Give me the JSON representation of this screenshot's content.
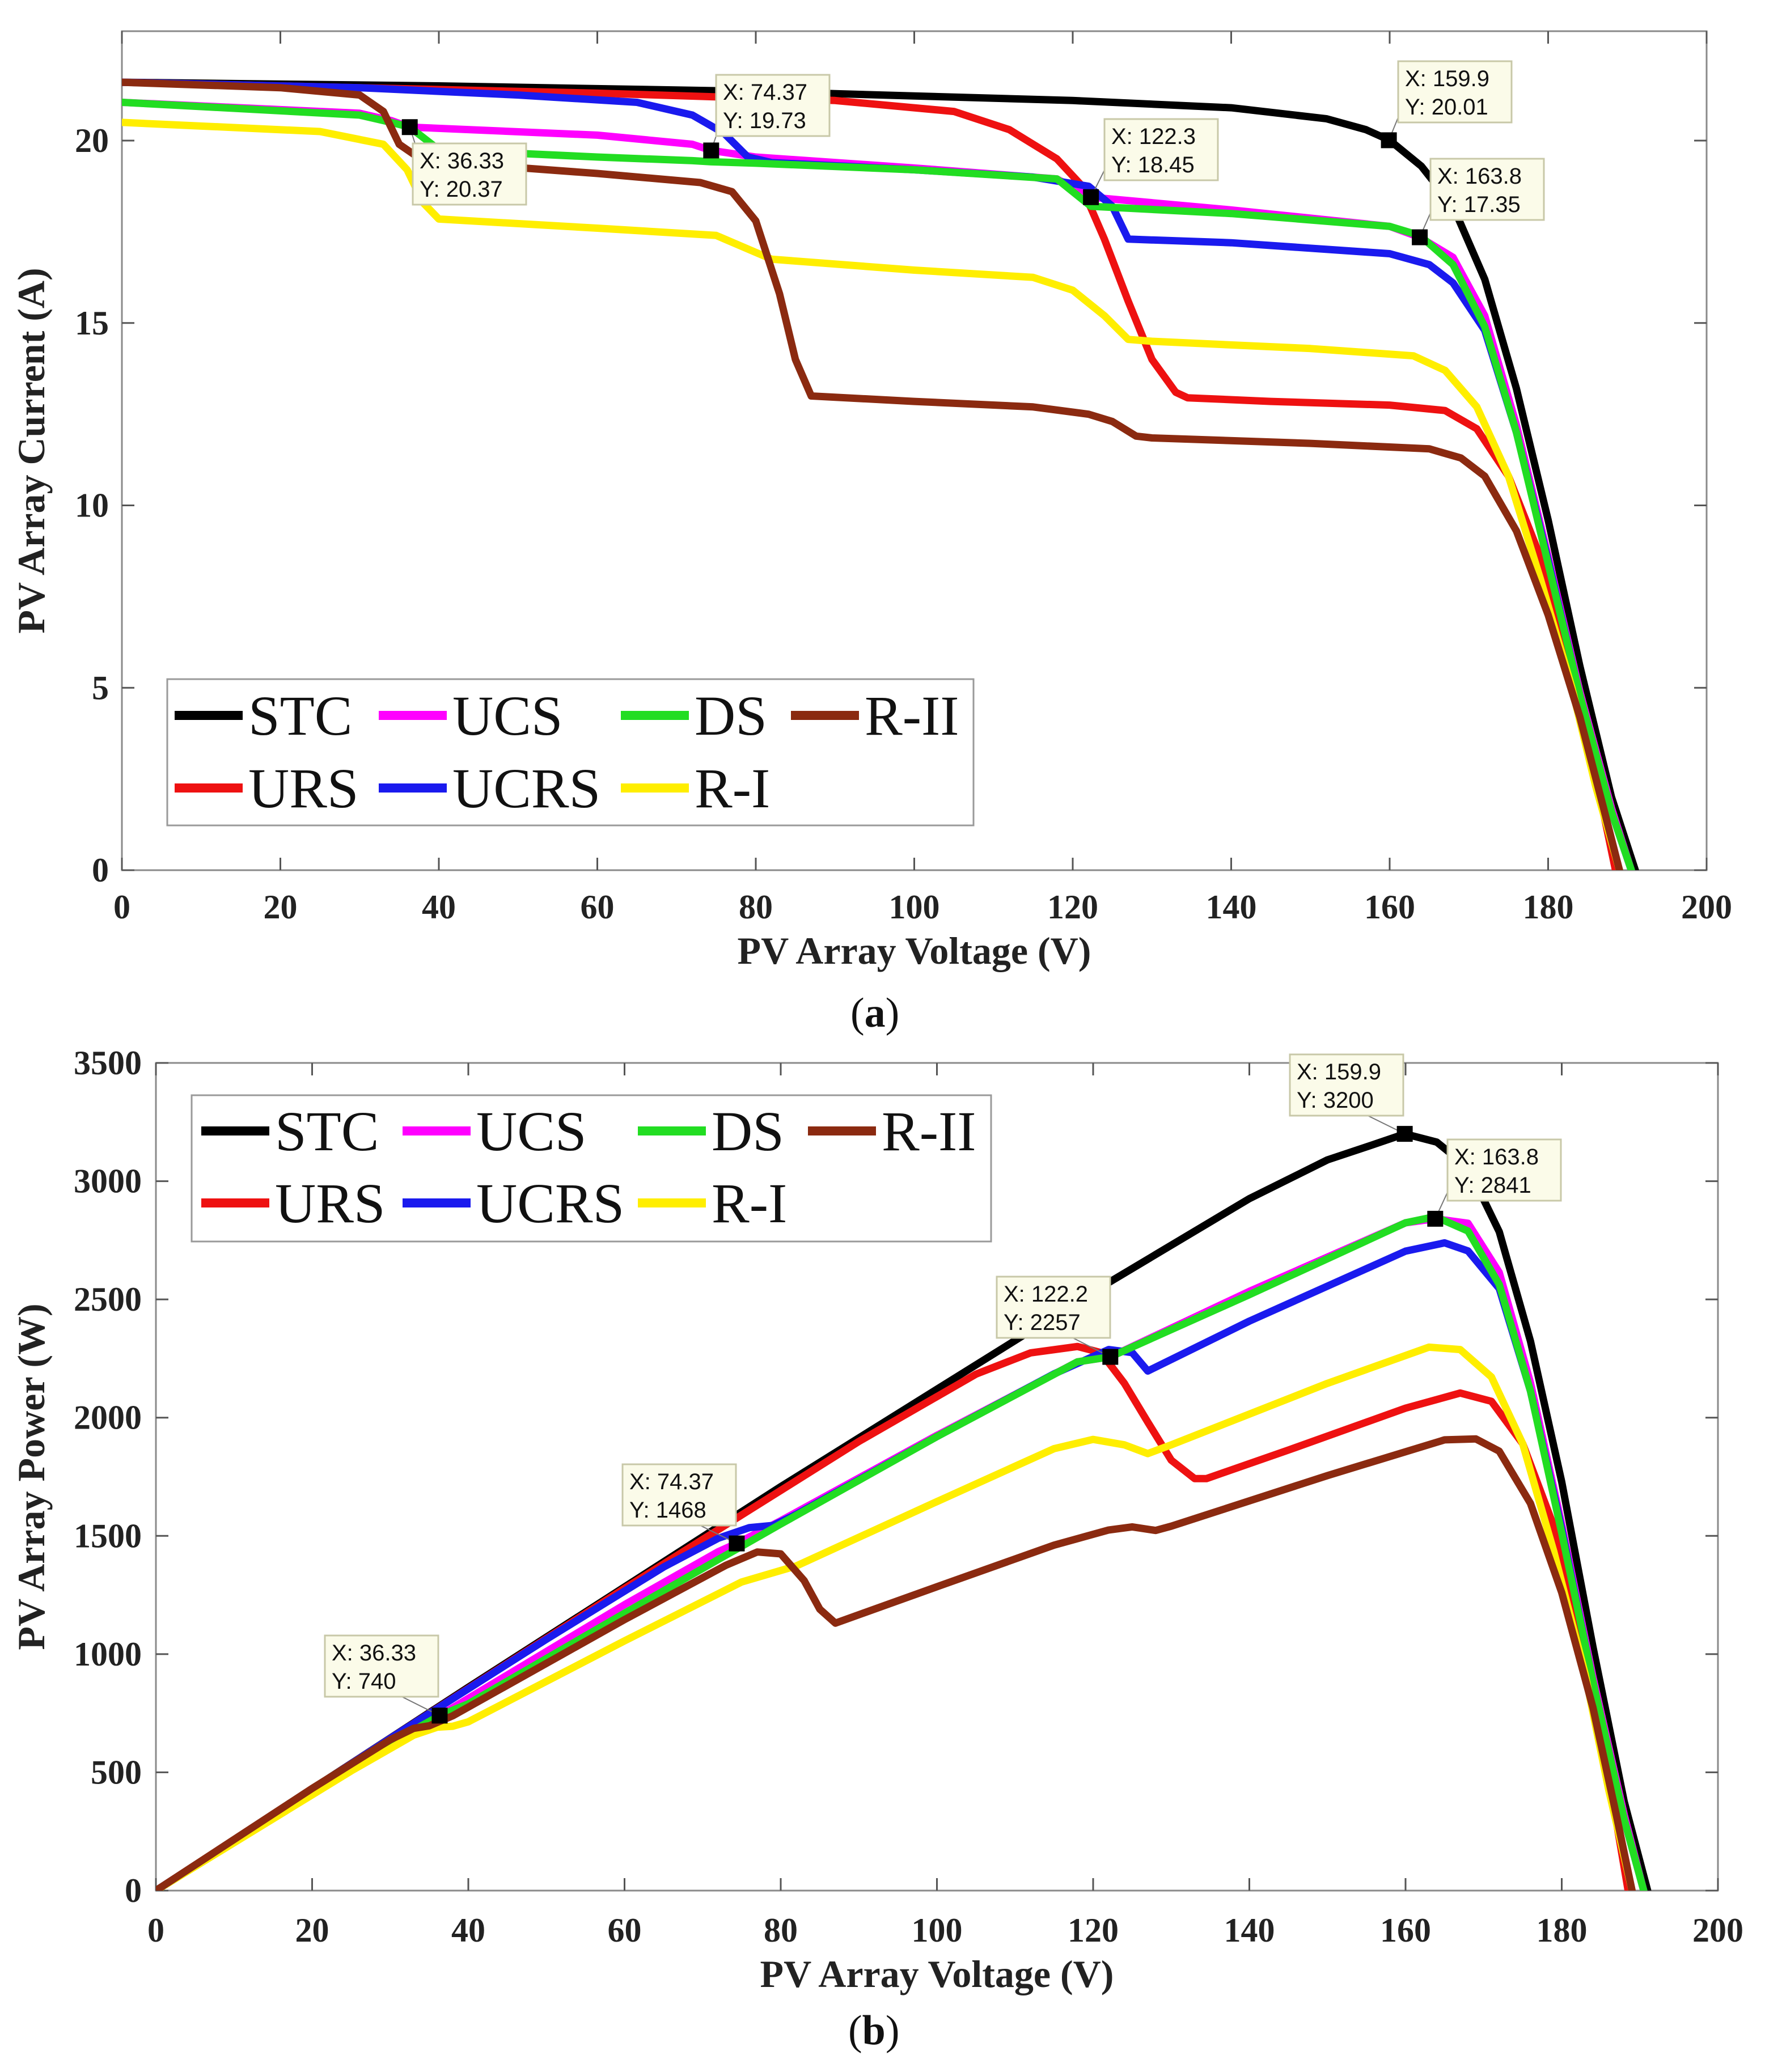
{
  "captions": {
    "a": "a",
    "b": "b"
  },
  "colors": {
    "STC": "#000000",
    "UCS": "#ff00ff",
    "DS": "#22dd22",
    "R-II": "#8b2a10",
    "URS": "#ee1111",
    "UCRS": "#1a1aee",
    "R-I": "#ffee00"
  },
  "chart_data": [
    {
      "type": "line",
      "panel": "a",
      "xlabel": "PV Array Voltage (V)",
      "ylabel": "PV Array Current (A)",
      "xlim": [
        0,
        200
      ],
      "ylim": [
        0,
        23
      ],
      "xticks": [
        0,
        20,
        40,
        60,
        80,
        100,
        120,
        140,
        160,
        180,
        200
      ],
      "yticks": [
        0,
        5,
        10,
        15,
        20
      ],
      "legend": {
        "position": "lower-left",
        "rows": [
          [
            "STC",
            "UCS",
            "DS",
            "R-II"
          ],
          [
            "URS",
            "UCRS",
            "R-I"
          ]
        ]
      },
      "series": [
        {
          "name": "STC",
          "x": [
            0,
            40,
            80,
            120,
            140,
            152,
            157,
            160,
            164,
            168,
            172,
            176,
            180,
            184,
            188,
            191
          ],
          "y": [
            21.6,
            21.5,
            21.35,
            21.1,
            20.9,
            20.6,
            20.3,
            20.01,
            19.3,
            18.2,
            16.2,
            13.2,
            9.6,
            5.6,
            2.0,
            0
          ]
        },
        {
          "name": "URS",
          "x": [
            0,
            30,
            60,
            90,
            105,
            112,
            118,
            121,
            124,
            127,
            130,
            133,
            134.5,
            145,
            160,
            167,
            171,
            175,
            179,
            183,
            186,
            188.5
          ],
          "y": [
            21.6,
            21.45,
            21.3,
            21.1,
            20.8,
            20.3,
            19.5,
            18.8,
            17.3,
            15.6,
            14.0,
            13.1,
            12.95,
            12.85,
            12.75,
            12.6,
            12.1,
            10.8,
            8.6,
            5.2,
            2.6,
            0
          ]
        },
        {
          "name": "UCS",
          "x": [
            0,
            30,
            34,
            36.33,
            60,
            72,
            74.37,
            80,
            100,
            118,
            122.3,
            140,
            160,
            163.8,
            168,
            172,
            176,
            180,
            184,
            188,
            190.5
          ],
          "y": [
            21.05,
            20.75,
            20.55,
            20.37,
            20.15,
            19.9,
            19.73,
            19.55,
            19.25,
            18.95,
            18.45,
            18.1,
            17.65,
            17.35,
            16.8,
            15.2,
            12.2,
            8.6,
            4.9,
            1.7,
            0
          ]
        },
        {
          "name": "UCRS",
          "x": [
            0,
            30,
            50,
            65,
            72,
            76,
            79,
            82,
            100,
            115,
            122,
            125,
            127,
            140,
            160,
            165,
            168,
            172,
            176,
            180,
            184,
            188,
            190.5
          ],
          "y": [
            21.6,
            21.45,
            21.25,
            21.05,
            20.7,
            20.2,
            19.55,
            19.4,
            19.2,
            19.0,
            18.75,
            18.2,
            17.3,
            17.2,
            16.9,
            16.6,
            16.1,
            14.8,
            12.0,
            8.5,
            4.8,
            1.6,
            0
          ]
        },
        {
          "name": "DS",
          "x": [
            0,
            30,
            34,
            36.33,
            40,
            60,
            72,
            74.37,
            80,
            100,
            118,
            122.3,
            140,
            160,
            163.8,
            168,
            172,
            176,
            180,
            184,
            188,
            190.5
          ],
          "y": [
            21.05,
            20.7,
            20.5,
            20.37,
            19.75,
            19.55,
            19.45,
            19.42,
            19.38,
            19.2,
            18.95,
            18.2,
            18.0,
            17.65,
            17.4,
            16.6,
            14.9,
            12.0,
            8.4,
            4.8,
            1.6,
            0
          ]
        },
        {
          "name": "R-I",
          "x": [
            0,
            25,
            33,
            36,
            38,
            40,
            60,
            75,
            82,
            100,
            115,
            120,
            124,
            127,
            130,
            150,
            163,
            167,
            171,
            175,
            179,
            183,
            186,
            189
          ],
          "y": [
            20.5,
            20.25,
            19.9,
            19.2,
            18.3,
            17.85,
            17.6,
            17.4,
            16.75,
            16.45,
            16.25,
            15.9,
            15.2,
            14.55,
            14.5,
            14.3,
            14.1,
            13.7,
            12.7,
            10.8,
            8.0,
            5.0,
            2.3,
            0
          ]
        },
        {
          "name": "R-II",
          "x": [
            0,
            20,
            30,
            33,
            35,
            38,
            60,
            73,
            77,
            80,
            83,
            85,
            87,
            100,
            115,
            122,
            125,
            128,
            130,
            150,
            165,
            169,
            172,
            176,
            180,
            184,
            187,
            189
          ],
          "y": [
            21.6,
            21.45,
            21.25,
            20.8,
            19.9,
            19.45,
            19.1,
            18.85,
            18.6,
            17.8,
            15.8,
            14.0,
            13.0,
            12.85,
            12.7,
            12.5,
            12.3,
            11.9,
            11.85,
            11.7,
            11.55,
            11.3,
            10.8,
            9.3,
            7.0,
            4.2,
            1.7,
            0
          ]
        }
      ],
      "datatips": [
        {
          "x": 36.33,
          "y": 20.37,
          "xl": "X: 36.33",
          "yl": "Y: 20.37"
        },
        {
          "x": 74.37,
          "y": 19.73,
          "xl": "X: 74.37",
          "yl": "Y: 19.73"
        },
        {
          "x": 122.3,
          "y": 18.45,
          "xl": "X: 122.3",
          "yl": "Y: 18.45"
        },
        {
          "x": 159.9,
          "y": 20.01,
          "xl": "X: 159.9",
          "yl": "Y: 20.01"
        },
        {
          "x": 163.8,
          "y": 17.35,
          "xl": "X: 163.8",
          "yl": "Y: 17.35"
        }
      ]
    },
    {
      "type": "line",
      "panel": "b",
      "xlabel": "PV Array Voltage (V)",
      "ylabel": "PV Array Power (W)",
      "xlim": [
        0,
        200
      ],
      "ylim": [
        0,
        3500
      ],
      "xticks": [
        0,
        20,
        40,
        60,
        80,
        100,
        120,
        140,
        160,
        180,
        200
      ],
      "yticks": [
        0,
        500,
        1000,
        1500,
        2000,
        2500,
        3000,
        3500
      ],
      "legend": {
        "position": "top-left",
        "rows": [
          [
            "STC",
            "UCS",
            "DS",
            "R-II"
          ],
          [
            "URS",
            "UCRS",
            "R-I"
          ]
        ]
      },
      "series": [
        {
          "name": "STC",
          "x": [
            0,
            40,
            80,
            120,
            140,
            150,
            155,
            159.9,
            164,
            168,
            172,
            176,
            180,
            184,
            188,
            191
          ],
          "y": [
            0,
            860,
            1708,
            2532,
            2926,
            3090,
            3145,
            3200,
            3165,
            3058,
            2786,
            2323,
            1728,
            1030,
            376,
            0
          ]
        },
        {
          "name": "URS",
          "x": [
            0,
            30,
            60,
            90,
            105,
            112,
            118,
            121,
            124,
            127,
            130,
            133,
            134.5,
            145,
            160,
            167,
            171,
            175,
            179,
            183,
            186,
            188.5
          ],
          "y": [
            0,
            644,
            1278,
            1899,
            2184,
            2274,
            2301,
            2275,
            2145,
            1981,
            1820,
            1742,
            1742,
            1863,
            2040,
            2104,
            2069,
            1890,
            1539,
            952,
            484,
            0
          ]
        },
        {
          "name": "UCS",
          "x": [
            0,
            30,
            34,
            36.33,
            60,
            72,
            74.37,
            80,
            100,
            118,
            122.2,
            140,
            160,
            163.8,
            168,
            172,
            176,
            180,
            184,
            188,
            190.5
          ],
          "y": [
            0,
            623,
            699,
            740,
            1209,
            1433,
            1468,
            1564,
            1925,
            2236,
            2257,
            2534,
            2824,
            2841,
            2822,
            2614,
            2147,
            1548,
            902,
            320,
            0
          ]
        },
        {
          "name": "UCRS",
          "x": [
            0,
            30,
            50,
            65,
            72,
            76,
            79,
            82,
            100,
            115,
            122,
            125,
            127,
            140,
            160,
            165,
            168,
            172,
            176,
            180,
            184,
            188,
            190.5
          ],
          "y": [
            0,
            644,
            1063,
            1368,
            1490,
            1535,
            1544,
            1591,
            1920,
            2185,
            2288,
            2275,
            2197,
            2408,
            2704,
            2739,
            2705,
            2546,
            2112,
            1530,
            883,
            301,
            0
          ]
        },
        {
          "name": "DS",
          "x": [
            0,
            30,
            34,
            36.33,
            40,
            60,
            72,
            74.37,
            80,
            100,
            118,
            122.2,
            140,
            160,
            163.8,
            168,
            172,
            176,
            180,
            184,
            188,
            190.5
          ],
          "y": [
            0,
            621,
            697,
            740,
            790,
            1173,
            1400,
            1444,
            1550,
            1920,
            2236,
            2257,
            2520,
            2824,
            2850,
            2789,
            2563,
            2112,
            1512,
            883,
            301,
            0
          ]
        },
        {
          "name": "R-I",
          "x": [
            0,
            25,
            33,
            36,
            38,
            40,
            60,
            75,
            82,
            100,
            115,
            120,
            124,
            127,
            130,
            150,
            163,
            167,
            171,
            175,
            179,
            183,
            186,
            189
          ],
          "y": [
            0,
            506,
            657,
            691,
            695,
            714,
            1056,
            1305,
            1373,
            1645,
            1869,
            1908,
            1885,
            1848,
            1885,
            2145,
            2298,
            2288,
            2172,
            1890,
            1432,
            915,
            428,
            0
          ]
        },
        {
          "name": "R-II",
          "x": [
            0,
            20,
            30,
            33,
            35,
            38,
            60,
            73,
            77,
            80,
            83,
            85,
            87,
            100,
            115,
            122,
            125,
            128,
            130,
            150,
            165,
            169,
            172,
            176,
            180,
            184,
            187,
            189
          ],
          "y": [
            0,
            432,
            638,
            686,
            697,
            739,
            1146,
            1376,
            1432,
            1424,
            1311,
            1190,
            1131,
            1285,
            1461,
            1525,
            1538,
            1523,
            1541,
            1755,
            1906,
            1910,
            1858,
            1637,
            1260,
            773,
            318,
            0
          ]
        }
      ],
      "datatips": [
        {
          "x": 36.33,
          "y": 740,
          "xl": "X: 36.33",
          "yl": "Y: 740"
        },
        {
          "x": 74.37,
          "y": 1468,
          "xl": "X: 74.37",
          "yl": "Y: 1468"
        },
        {
          "x": 122.2,
          "y": 2257,
          "xl": "X: 122.2",
          "yl": "Y: 2257"
        },
        {
          "x": 159.9,
          "y": 3200,
          "xl": "X: 159.9",
          "yl": "Y: 3200"
        },
        {
          "x": 163.8,
          "y": 2841,
          "xl": "X: 163.8",
          "yl": "Y: 2841"
        }
      ]
    }
  ]
}
